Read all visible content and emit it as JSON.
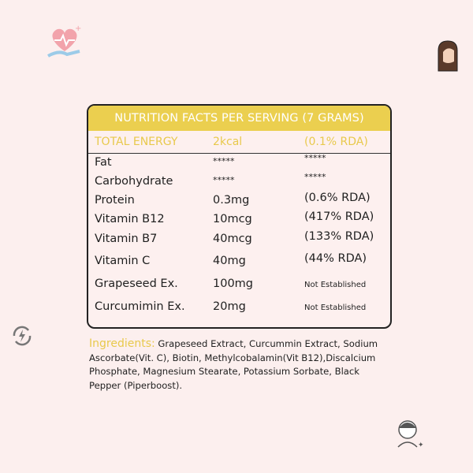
{
  "table": {
    "title": "NUTRITION FACTS PER SERVING (7 GRAMS)",
    "energy": {
      "label": "TOTAL ENERGY",
      "value": "2kcal",
      "rda": "(0.1% RDA)"
    },
    "rows": [
      {
        "name": "Fat",
        "amount": "*****",
        "rda": "*****"
      },
      {
        "name": "Carbohydrate",
        "amount": "*****",
        "rda": "*****"
      },
      {
        "name": "Protein",
        "amount": "0.3mg",
        "rda": "(0.6% RDA)"
      },
      {
        "name": "Vitamin B12",
        "amount": "10mcg",
        "rda": "(417% RDA)"
      },
      {
        "name": "Vitamin B7",
        "amount": "40mcg",
        "rda": "(133% RDA)"
      },
      {
        "name": "Vitamin C",
        "amount": "40mg",
        "rda": "(44% RDA)"
      },
      {
        "name": "Grapeseed Ex.",
        "amount": "100mg",
        "rda": "Not Established"
      },
      {
        "name": "Curcumimin Ex.",
        "amount": "20mg",
        "rda": "Not Established"
      }
    ]
  },
  "ingredients": {
    "label": "Ingredients:",
    "text": "Grapeseed Extract, Curcummin Extract, Sodium Ascorbate(Vit. C), Biotin, Methylcobalamin(Vit B12),Discalcium Phosphate, Magnesium Stearate, Potassium Sorbate, Black Pepper (Piperboost)."
  },
  "colors": {
    "accent": "#ebcf4f",
    "background": "#fcefee"
  },
  "icons": [
    "heart-hand-icon",
    "woman-hair-icon",
    "energy-recycle-icon",
    "face-care-icon"
  ]
}
